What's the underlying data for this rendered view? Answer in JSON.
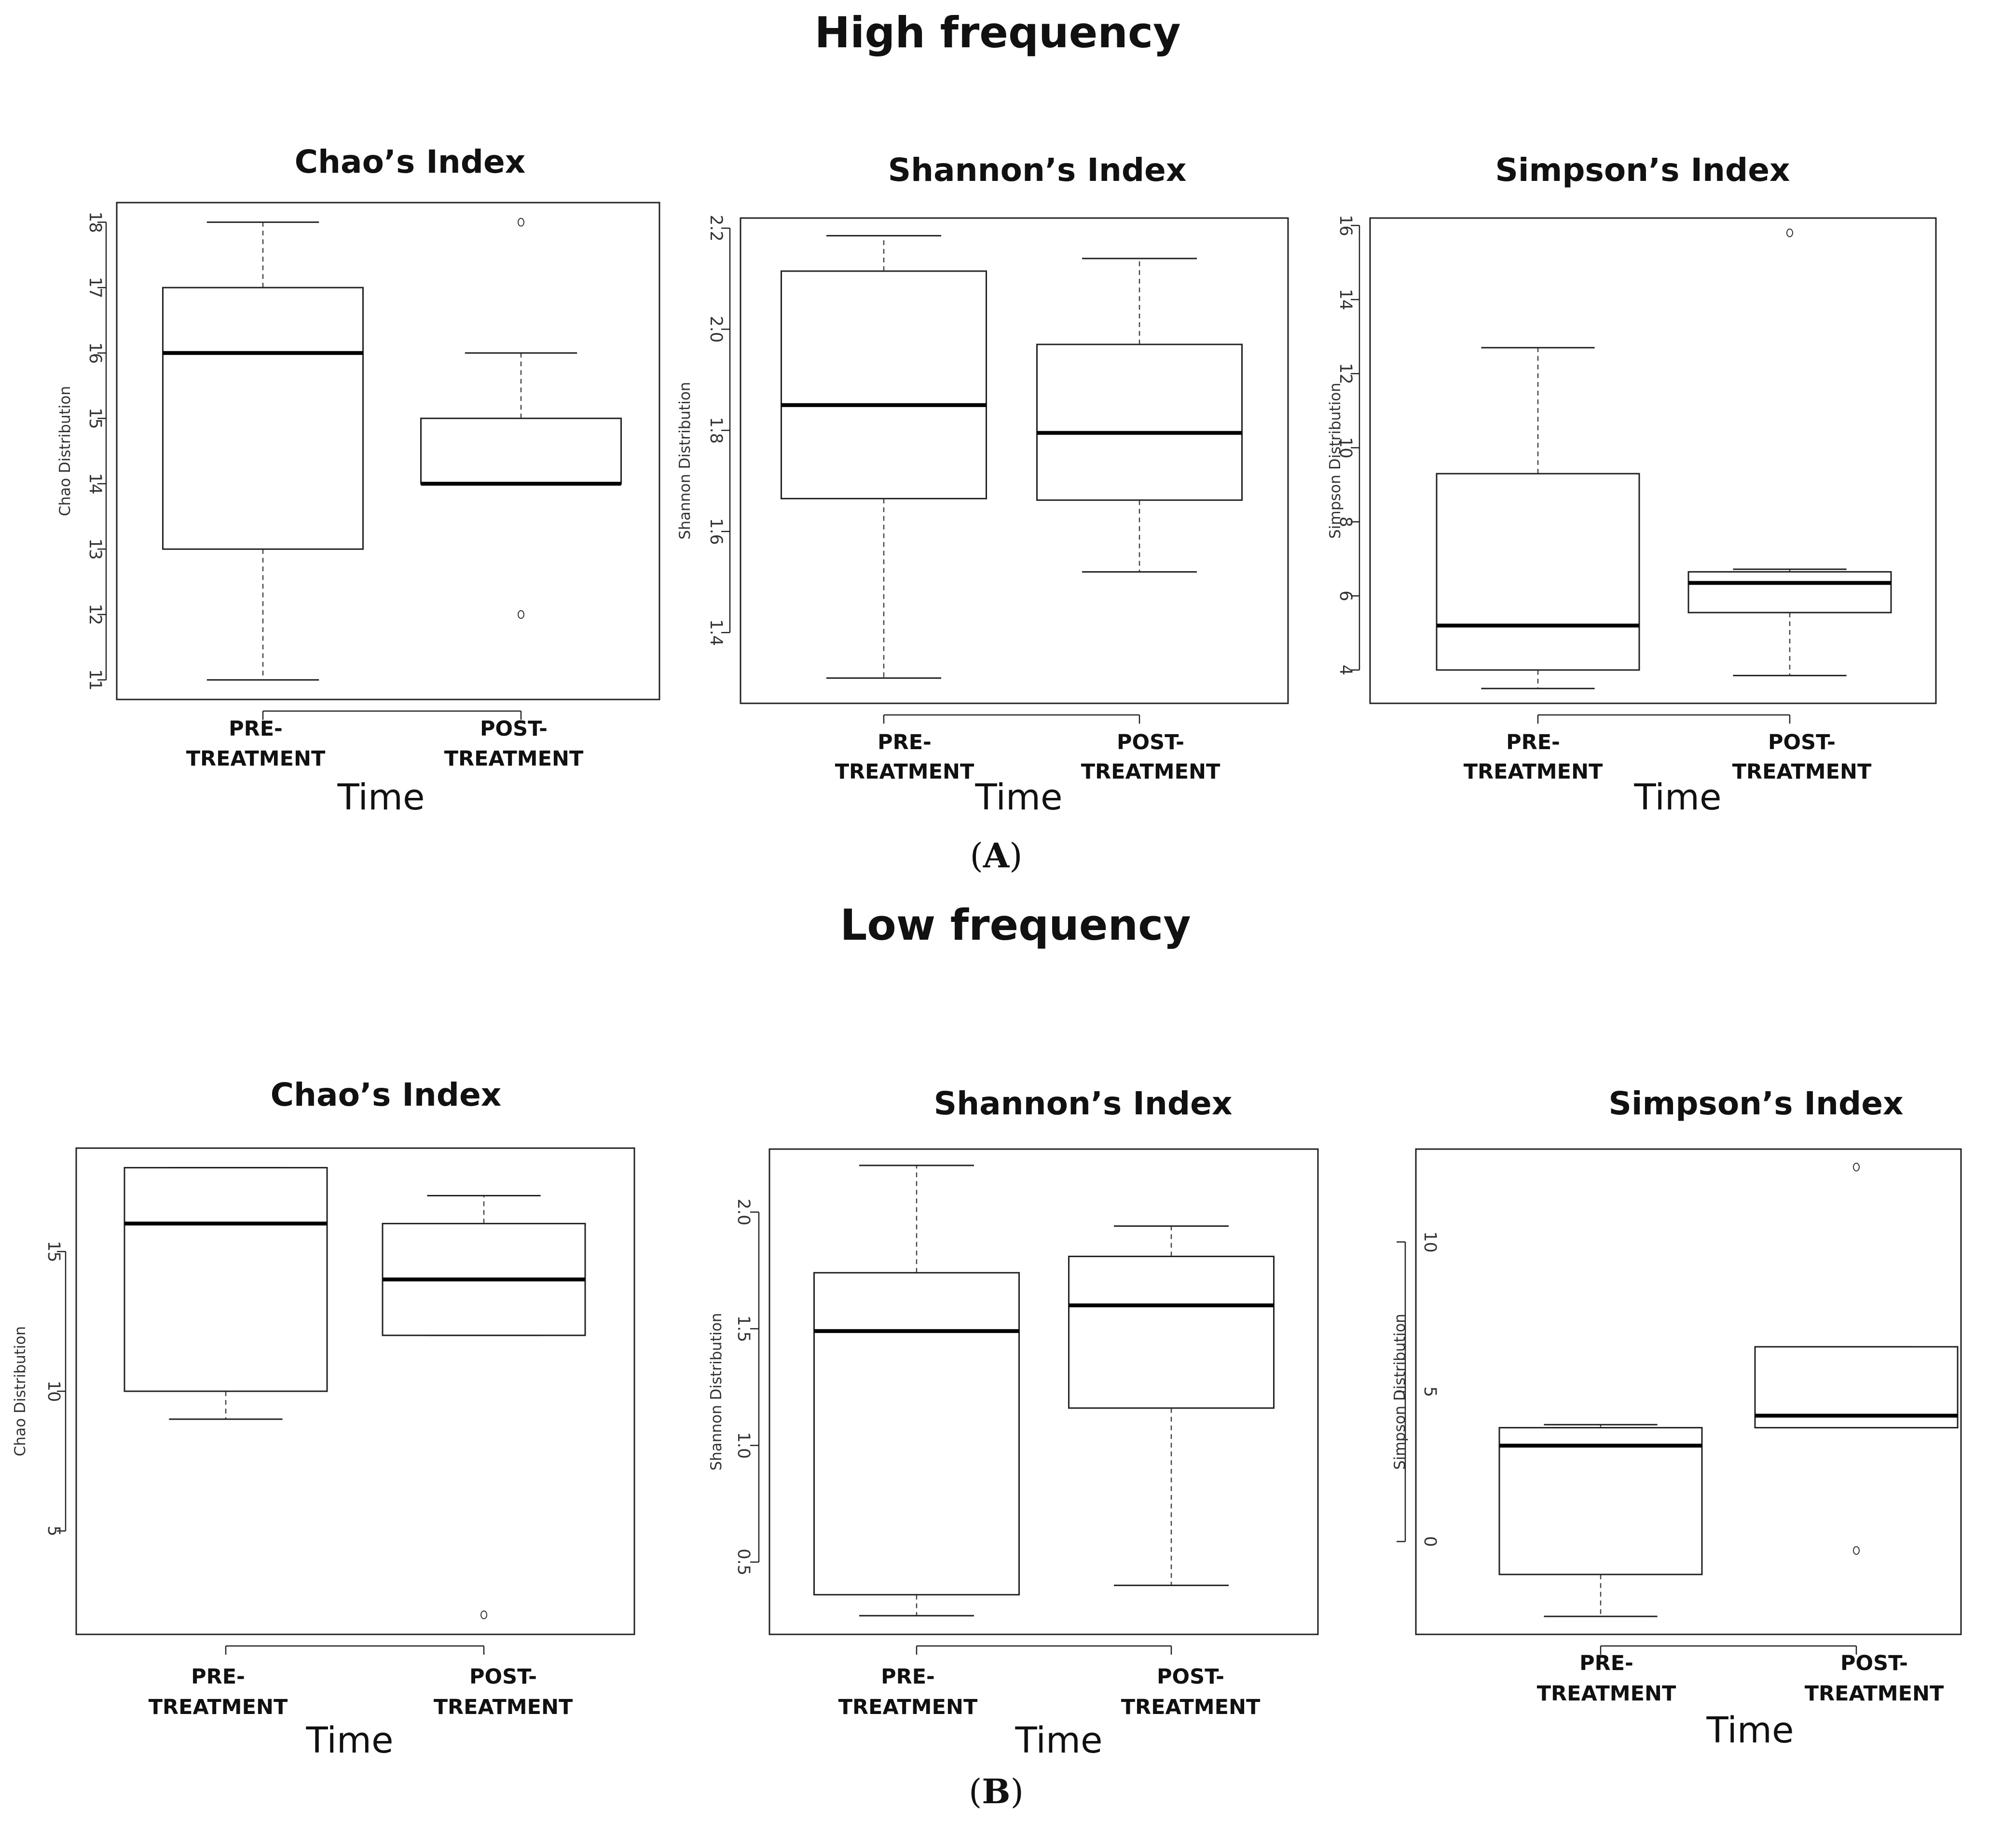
{
  "figure": {
    "sections": [
      {
        "title": "High frequency",
        "label": "A"
      },
      {
        "title": "Low frequency",
        "label": "B"
      }
    ]
  },
  "chart_data": [
    {
      "type": "boxplot",
      "section": "High frequency",
      "title": "Chao’s Index",
      "xlabel": "Time",
      "ylabel": "Chao Distribution",
      "categories": [
        "PRE-\nTREATMENT",
        "POST-\nTREATMENT"
      ],
      "ylim": [
        10.7,
        18.3
      ],
      "yticks": [
        11,
        12,
        13,
        14,
        15,
        16,
        17,
        18
      ],
      "boxes": [
        {
          "whisker_low": 11,
          "q1": 13,
          "median": 16,
          "q3": 17,
          "whisker_high": 18,
          "outliers": []
        },
        {
          "whisker_low": 14,
          "q1": 14,
          "median": 14,
          "q3": 15,
          "whisker_high": 16,
          "outliers": [
            12,
            18
          ]
        }
      ]
    },
    {
      "type": "boxplot",
      "section": "High frequency",
      "title": "Shannon’s Index",
      "xlabel": "Time",
      "ylabel": "Shannon Distribution",
      "categories": [
        "PRE-\nTREATMENT",
        "POST-\nTREATMENT"
      ],
      "ylim": [
        1.26,
        2.22
      ],
      "yticks": [
        1.4,
        1.6,
        1.8,
        2.0,
        2.2
      ],
      "boxes": [
        {
          "whisker_low": 1.31,
          "q1": 1.665,
          "median": 1.85,
          "q3": 2.115,
          "whisker_high": 2.185,
          "outliers": []
        },
        {
          "whisker_low": 1.52,
          "q1": 1.662,
          "median": 1.795,
          "q3": 1.97,
          "whisker_high": 2.14,
          "outliers": []
        }
      ]
    },
    {
      "type": "boxplot",
      "section": "High frequency",
      "title": "Simpson’s Index",
      "xlabel": "Time",
      "ylabel": "Simpson Distribution",
      "categories": [
        "PRE-\nTREATMENT",
        "POST-\nTREATMENT"
      ],
      "ylim": [
        3.1,
        16.2
      ],
      "yticks": [
        4,
        6,
        8,
        10,
        12,
        14,
        16
      ],
      "boxes": [
        {
          "whisker_low": 3.5,
          "q1": 4.0,
          "median": 5.2,
          "q3": 9.3,
          "whisker_high": 12.7,
          "outliers": []
        },
        {
          "whisker_low": 3.85,
          "q1": 5.55,
          "median": 6.35,
          "q3": 6.65,
          "whisker_high": 6.72,
          "outliers": [
            15.8
          ]
        }
      ]
    },
    {
      "type": "boxplot",
      "section": "Low frequency",
      "title": "Chao’s Index",
      "xlabel": "Time",
      "ylabel": "Chao Distribution",
      "categories": [
        "PRE-\nTREATMENT",
        "POST-\nTREATMENT"
      ],
      "ylim": [
        1.3,
        18.7
      ],
      "yticks": [
        5,
        10,
        15
      ],
      "boxes": [
        {
          "whisker_low": 9,
          "q1": 10,
          "median": 16,
          "q3": 18,
          "whisker_high": 18,
          "outliers": []
        },
        {
          "whisker_low": 12,
          "q1": 12,
          "median": 14,
          "q3": 16,
          "whisker_high": 17,
          "outliers": [
            2
          ]
        }
      ]
    },
    {
      "type": "boxplot",
      "section": "Low frequency",
      "title": "Shannon’s Index",
      "xlabel": "Time",
      "ylabel": "Shannon Distribution",
      "categories": [
        "PRE-\nTREATMENT",
        "POST-\nTREATMENT"
      ],
      "ylim": [
        0.19,
        2.27
      ],
      "yticks": [
        0.5,
        1.0,
        1.5,
        2.0
      ],
      "boxes": [
        {
          "whisker_low": 0.27,
          "q1": 0.36,
          "median": 1.49,
          "q3": 1.74,
          "whisker_high": 2.2,
          "outliers": []
        },
        {
          "whisker_low": 0.4,
          "q1": 1.16,
          "median": 1.6,
          "q3": 1.81,
          "whisker_high": 1.94,
          "outliers": []
        }
      ]
    },
    {
      "type": "boxplot",
      "section": "Low frequency",
      "title": "Simpson’s Index",
      "xlabel": "Time",
      "ylabel": "Simpson Distribution",
      "categories": [
        "PRE-\nTREATMENT",
        "POST-\nTREATMENT"
      ],
      "ylim": [
        -3.1,
        13.1
      ],
      "yticks": [
        0,
        5,
        10
      ],
      "boxes": [
        {
          "whisker_low": -2.5,
          "q1": -1.1,
          "median": 3.2,
          "q3": 3.8,
          "whisker_high": 3.9,
          "outliers": []
        },
        {
          "whisker_low": 3.8,
          "q1": 3.8,
          "median": 4.2,
          "q3": 6.5,
          "whisker_high": 6.5,
          "outliers": [
            12.5,
            -0.3
          ]
        }
      ]
    }
  ]
}
